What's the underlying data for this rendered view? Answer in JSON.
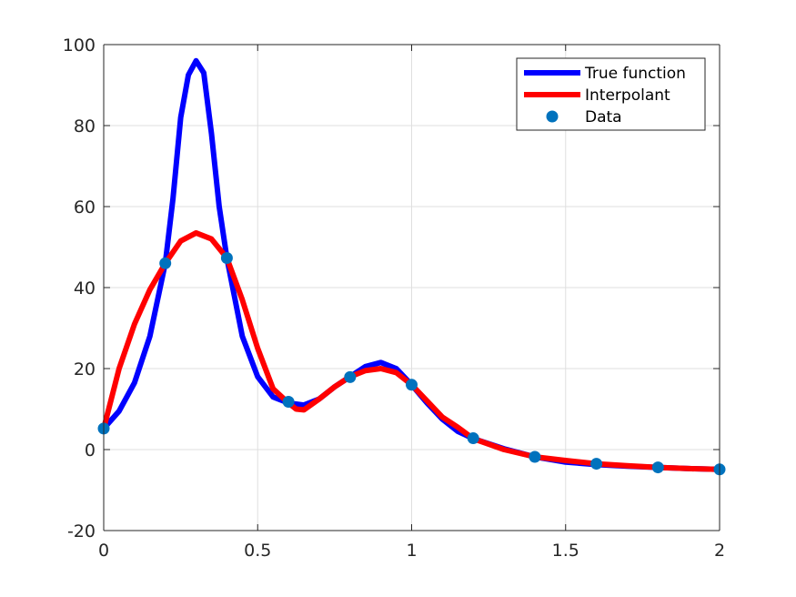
{
  "chart_data": {
    "type": "line",
    "title": "",
    "xlabel": "",
    "ylabel": "",
    "xlim": [
      0,
      2
    ],
    "ylim": [
      -20,
      100
    ],
    "xticks": [
      0,
      0.5,
      1,
      1.5,
      2
    ],
    "xtick_labels": [
      "0",
      "0.5",
      "1",
      "1.5",
      "2"
    ],
    "yticks": [
      -20,
      0,
      20,
      40,
      60,
      80,
      100
    ],
    "ytick_labels": [
      "-20",
      "0",
      "20",
      "40",
      "60",
      "80",
      "100"
    ],
    "grid": true,
    "legend_position": "top-right",
    "series": [
      {
        "name": "True function",
        "kind": "line",
        "color": "#0000ff",
        "x": [
          0,
          0.05,
          0.1,
          0.15,
          0.2,
          0.225,
          0.25,
          0.275,
          0.3,
          0.325,
          0.35,
          0.375,
          0.4,
          0.45,
          0.5,
          0.55,
          0.6,
          0.65,
          0.7,
          0.75,
          0.8,
          0.85,
          0.9,
          0.95,
          1.0,
          1.05,
          1.1,
          1.15,
          1.2,
          1.3,
          1.4,
          1.5,
          1.6,
          1.7,
          1.8,
          1.9,
          2.0
        ],
        "y": [
          5.2,
          9.5,
          16.5,
          28,
          46,
          62,
          82,
          92.5,
          96,
          93,
          78,
          60,
          47.3,
          28,
          18,
          13,
          11.5,
          11,
          12.5,
          15.5,
          18,
          20.5,
          21.5,
          20,
          16,
          11.5,
          7.5,
          4.5,
          2.7,
          0.2,
          -1.8,
          -3.1,
          -3.7,
          -4.1,
          -4.4,
          -4.7,
          -4.9
        ]
      },
      {
        "name": "Interpolant",
        "kind": "line",
        "color": "#ff0000",
        "x": [
          0,
          0.05,
          0.1,
          0.15,
          0.2,
          0.25,
          0.3,
          0.35,
          0.4,
          0.45,
          0.5,
          0.55,
          0.6,
          0.625,
          0.65,
          0.7,
          0.75,
          0.8,
          0.85,
          0.9,
          0.95,
          1.0,
          1.05,
          1.1,
          1.15,
          1.2,
          1.3,
          1.4,
          1.5,
          1.6,
          1.7,
          1.8,
          1.9,
          2.0
        ],
        "y": [
          5.2,
          20,
          31,
          39.5,
          46,
          51.5,
          53.5,
          52,
          47.3,
          37,
          25,
          15,
          11.5,
          10,
          9.8,
          12.5,
          15.5,
          18,
          19.5,
          20,
          19,
          16,
          12,
          8,
          5.5,
          2.7,
          0,
          -1.8,
          -2.7,
          -3.5,
          -4.0,
          -4.4,
          -4.7,
          -4.9
        ]
      },
      {
        "name": "Data",
        "kind": "markers",
        "color": "#0072bd",
        "x": [
          0,
          0.2,
          0.4,
          0.6,
          0.8,
          1.0,
          1.2,
          1.4,
          1.6,
          1.8,
          2.0
        ],
        "y": [
          5.2,
          46,
          47.3,
          11.8,
          17.9,
          16,
          2.8,
          -1.8,
          -3.5,
          -4.4,
          -4.9
        ]
      }
    ]
  }
}
